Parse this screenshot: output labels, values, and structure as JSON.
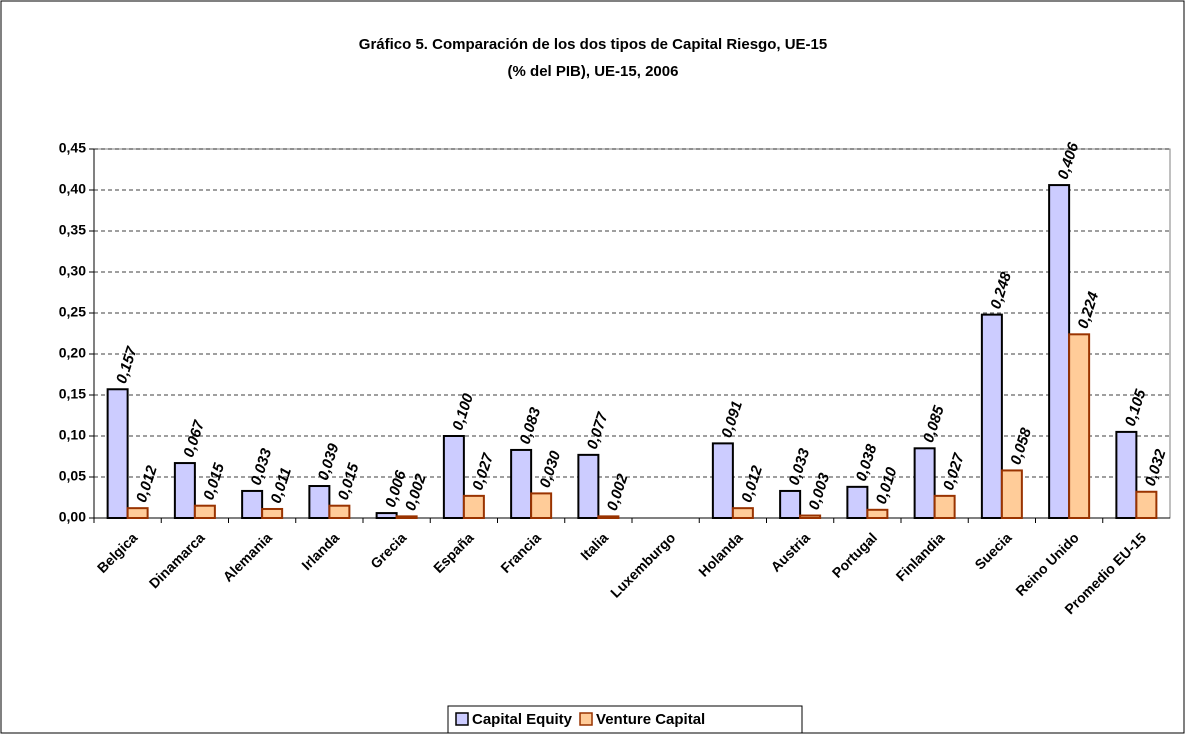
{
  "chart_data": {
    "type": "bar",
    "title": [
      "Gráfico 5. Comparación de los dos tipos de Capital Riesgo, UE-15",
      "(% del PIB), UE-15, 2006"
    ],
    "categories": [
      "Belgica",
      "Dinamarca",
      "Alemania",
      "Irlanda",
      "Grecia",
      "España",
      "Francia",
      "Italia",
      "Luxemburgo",
      "Holanda",
      "Austria",
      "Portugal",
      "Finlandia",
      "Suecia",
      "Reino Unido",
      "Promedio EU-15"
    ],
    "series": [
      {
        "name": "Capital Equity",
        "color": "#ccccff",
        "stroke": "#000000",
        "values": [
          0.157,
          0.067,
          0.033,
          0.039,
          0.006,
          0.1,
          0.083,
          0.077,
          null,
          0.091,
          0.033,
          0.038,
          0.085,
          0.248,
          0.406,
          0.105
        ],
        "value_labels": [
          "0,157",
          "0,067",
          "0,033",
          "0,039",
          "0,006",
          "0,100",
          "0,083",
          "0,077",
          null,
          "0,091",
          "0,033",
          "0,038",
          "0,085",
          "0,248",
          "0,406",
          "0,105"
        ]
      },
      {
        "name": "Venture Capital",
        "color": "#ffcc99",
        "stroke": "#993300",
        "values": [
          0.012,
          0.015,
          0.011,
          0.015,
          0.002,
          0.027,
          0.03,
          0.002,
          null,
          0.012,
          0.003,
          0.01,
          0.027,
          0.058,
          0.224,
          0.032
        ],
        "value_labels": [
          "0,012",
          "0,015",
          "0,011",
          "0,015",
          "0,002",
          "0,027",
          "0,030",
          "0,002",
          null,
          "0,012",
          "0,003",
          "0,010",
          "0,027",
          "0,058",
          "0,224",
          "0,032"
        ]
      }
    ],
    "ylim": [
      0,
      0.45
    ],
    "yticks": [
      {
        "value": 0,
        "label": "0,00"
      },
      {
        "value": 0.05,
        "label": "0,05"
      },
      {
        "value": 0.1,
        "label": "0,10"
      },
      {
        "value": 0.15,
        "label": "0,15"
      },
      {
        "value": 0.2,
        "label": "0,20"
      },
      {
        "value": 0.25,
        "label": "0,25"
      },
      {
        "value": 0.3,
        "label": "0,30"
      },
      {
        "value": 0.35,
        "label": "0,35"
      },
      {
        "value": 0.4,
        "label": "0,40"
      },
      {
        "value": 0.45,
        "label": "0,45"
      }
    ],
    "grid": true,
    "legend": "bottom"
  }
}
